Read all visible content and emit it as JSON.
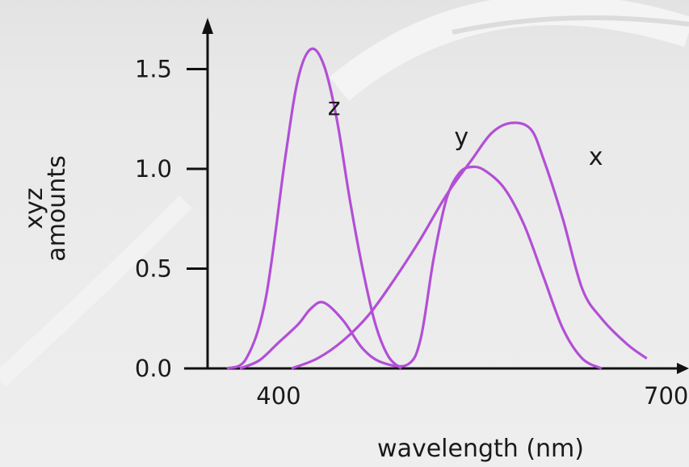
{
  "chart_data": {
    "type": "line",
    "xlabel": "wavelength (nm)",
    "ylabel": [
      "xyz",
      "amounts"
    ],
    "xlim": [
      340,
      700
    ],
    "ylim": [
      0,
      1.6
    ],
    "x_ticks": [
      {
        "value": 400,
        "label": "400"
      },
      {
        "value": 700,
        "label": "700"
      }
    ],
    "y_ticks": [
      {
        "value": 0.0,
        "label": "0.0"
      },
      {
        "value": 0.5,
        "label": "0.5"
      },
      {
        "value": 1.0,
        "label": "1.0"
      },
      {
        "value": 1.5,
        "label": "1.5"
      }
    ],
    "grid": false,
    "line_color": "#b24fd6",
    "series": [
      {
        "name": "z",
        "label_at": [
          438,
          1.27
        ],
        "points": [
          [
            360,
            0.0
          ],
          [
            375,
            0.05
          ],
          [
            390,
            0.35
          ],
          [
            405,
            1.05
          ],
          [
            415,
            1.45
          ],
          [
            425,
            1.6
          ],
          [
            435,
            1.52
          ],
          [
            445,
            1.25
          ],
          [
            455,
            0.85
          ],
          [
            465,
            0.5
          ],
          [
            475,
            0.22
          ],
          [
            485,
            0.06
          ],
          [
            495,
            0.0
          ]
        ]
      },
      {
        "name": "y",
        "label_at": [
          536,
          1.12
        ],
        "points": [
          [
            370,
            0.0
          ],
          [
            385,
            0.04
          ],
          [
            400,
            0.13
          ],
          [
            415,
            0.22
          ],
          [
            425,
            0.3
          ],
          [
            435,
            0.33
          ],
          [
            450,
            0.24
          ],
          [
            465,
            0.1
          ],
          [
            480,
            0.03
          ],
          [
            500,
            0.02
          ],
          [
            510,
            0.15
          ],
          [
            520,
            0.55
          ],
          [
            530,
            0.85
          ],
          [
            540,
            0.98
          ],
          [
            550,
            1.01
          ],
          [
            560,
            0.99
          ],
          [
            575,
            0.9
          ],
          [
            590,
            0.72
          ],
          [
            605,
            0.46
          ],
          [
            620,
            0.2
          ],
          [
            635,
            0.05
          ],
          [
            650,
            0.0
          ]
        ]
      },
      {
        "name": "x",
        "label_at": [
          640,
          1.02
        ],
        "points": [
          [
            410,
            0.0
          ],
          [
            430,
            0.05
          ],
          [
            450,
            0.14
          ],
          [
            470,
            0.27
          ],
          [
            490,
            0.45
          ],
          [
            510,
            0.65
          ],
          [
            530,
            0.87
          ],
          [
            550,
            1.05
          ],
          [
            565,
            1.18
          ],
          [
            580,
            1.23
          ],
          [
            595,
            1.2
          ],
          [
            605,
            1.05
          ],
          [
            620,
            0.75
          ],
          [
            635,
            0.4
          ],
          [
            650,
            0.25
          ],
          [
            670,
            0.12
          ],
          [
            685,
            0.05
          ]
        ]
      }
    ]
  }
}
